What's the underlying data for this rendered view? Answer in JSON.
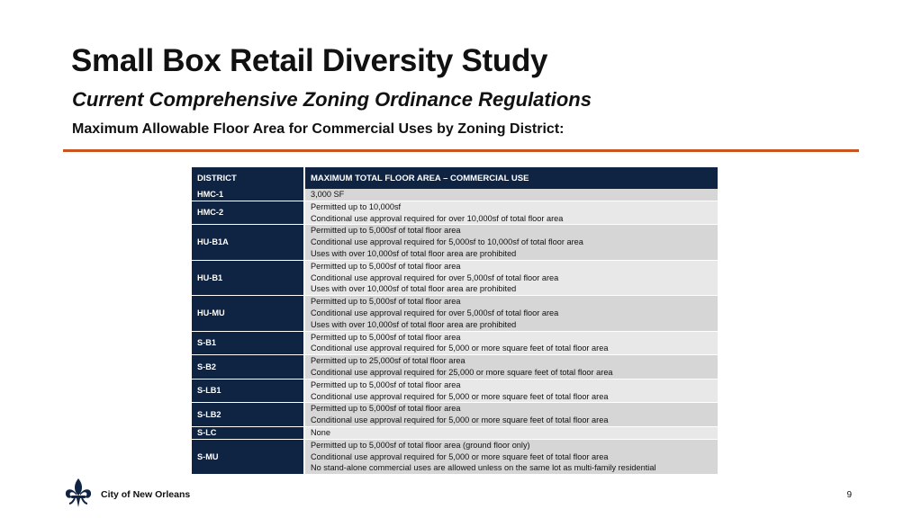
{
  "header": {
    "title": "Small Box Retail Diversity Study",
    "subtitle": "Current Comprehensive Zoning Ordinance Regulations",
    "heading": "Maximum Allowable Floor Area for Commercial Uses by Zoning District:"
  },
  "colors": {
    "navy": "#0f2443",
    "accent_rule": "#c8541f",
    "row_dark": "#d6d6d6",
    "row_light": "#e8e8e8"
  },
  "table": {
    "headers": [
      "DISTRICT",
      "MAXIMUM TOTAL FLOOR AREA – COMMERCIAL USE"
    ],
    "rows": [
      {
        "district": "HMC-1",
        "lines": [
          "3,000 SF"
        ]
      },
      {
        "district": "HMC-2",
        "lines": [
          "Permitted up to 10,000sf",
          "Conditional use approval required for over 10,000sf of total floor area"
        ]
      },
      {
        "district": "HU-B1A",
        "lines": [
          "Permitted up to 5,000sf of total floor area",
          "Conditional use approval required for 5,000sf to 10,000sf of total floor area",
          "Uses with over 10,000sf of total floor area are prohibited"
        ]
      },
      {
        "district": "HU-B1",
        "lines": [
          "Permitted up to 5,000sf of total floor area",
          "Conditional use approval required for over 5,000sf of total floor area",
          "Uses with over 10,000sf of total floor area are prohibited"
        ]
      },
      {
        "district": "HU-MU",
        "lines": [
          "Permitted up to 5,000sf of total floor area",
          "Conditional use approval required for over 5,000sf of total floor area",
          "Uses with over 10,000sf of total floor area are prohibited"
        ]
      },
      {
        "district": "S-B1",
        "lines": [
          "Permitted up to 5,000sf of total floor area",
          "Conditional use approval required for 5,000 or more square feet of total floor area"
        ]
      },
      {
        "district": "S-B2",
        "lines": [
          "Permitted up to 25,000sf of total floor area",
          "Conditional use approval required for 25,000 or more square feet of total floor area"
        ]
      },
      {
        "district": "S-LB1",
        "lines": [
          "Permitted up to 5,000sf of total floor area",
          "Conditional use approval required for 5,000 or more square feet of total floor area"
        ]
      },
      {
        "district": "S-LB2",
        "lines": [
          "Permitted up to 5,000sf of total floor area",
          "Conditional use approval required for 5,000 or more square feet of total floor area"
        ]
      },
      {
        "district": "S-LC",
        "lines": [
          "None"
        ]
      },
      {
        "district": "S-MU",
        "lines": [
          "Permitted up to 5,000sf of total floor area (ground floor only)",
          "Conditional use approval required for 5,000 or more square feet of total floor area",
          "No stand-alone commercial uses are allowed unless on the same lot as multi-family residential"
        ]
      }
    ]
  },
  "footer": {
    "logo_icon": "fleur-de-lis-icon",
    "org": "City of New Orleans",
    "page_number": "9"
  }
}
